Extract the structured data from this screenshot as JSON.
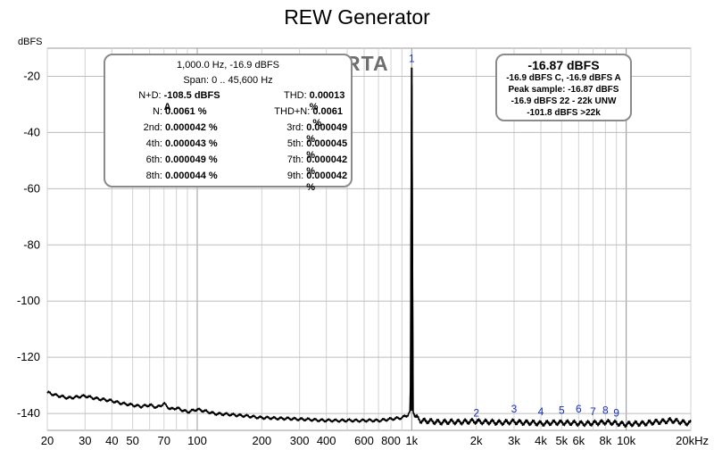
{
  "chart_data": {
    "type": "line",
    "title": "REW Generator",
    "ylabel": "dBFS",
    "xlabel": "",
    "xscale": "log",
    "xlim": [
      20,
      20000
    ],
    "ylim": [
      -146,
      -10
    ],
    "yticks": [
      -20,
      -40,
      -60,
      -80,
      -100,
      -120,
      -140
    ],
    "ytick_labels": [
      "-20",
      "-40",
      "-60",
      "-80",
      "-100",
      "-120",
      "-140"
    ],
    "xticks": [
      20,
      30,
      40,
      50,
      70,
      100,
      200,
      300,
      400,
      600,
      800,
      1000,
      2000,
      3000,
      4000,
      5000,
      6000,
      8000,
      10000,
      20000
    ],
    "xtick_labels": [
      "20",
      "30",
      "40",
      "50",
      "70",
      "100",
      "200",
      "300",
      "400",
      "600",
      "800",
      "1k",
      "2k",
      "3k",
      "4k",
      "5k",
      "6k",
      "8k",
      "10k",
      "20kHz"
    ],
    "grid": true,
    "series": [
      {
        "x": [
          20,
          22,
          25,
          28,
          30,
          33,
          36,
          40,
          45,
          50,
          55,
          60,
          65,
          70,
          75,
          80,
          90,
          100,
          120,
          150,
          200,
          300,
          400,
          500,
          600,
          700,
          800,
          900,
          960,
          985,
          1000,
          1015,
          1040,
          1100,
          1300,
          1600,
          2000,
          2500,
          3000,
          4000,
          5000,
          6000,
          7000,
          8000,
          9000,
          10000,
          12000,
          14000,
          16000,
          18000,
          20000
        ],
        "y": [
          -132.5,
          -133.5,
          -134.5,
          -134.0,
          -133.8,
          -134.5,
          -135.0,
          -135.5,
          -136.5,
          -137.0,
          -137.5,
          -137.0,
          -137.8,
          -136.5,
          -138.5,
          -138.0,
          -139.5,
          -138.5,
          -140.0,
          -140.5,
          -141.5,
          -142.0,
          -142.5,
          -142.5,
          -142.5,
          -142.5,
          -142.0,
          -141.5,
          -140.5,
          -139.0,
          -16.9,
          -139.0,
          -141.0,
          -142.5,
          -143.0,
          -143.0,
          -142.8,
          -143.2,
          -143.0,
          -143.5,
          -143.2,
          -143.5,
          -143.5,
          -143.0,
          -143.5,
          -143.8,
          -143.5,
          -143.0,
          -142.5,
          -143.0,
          -143.5
        ]
      }
    ],
    "harmonic_markers": [
      {
        "label": "1",
        "freq": 1000,
        "level": -16.9
      },
      {
        "label": "2",
        "freq": 2000,
        "level": -143.0
      },
      {
        "label": "3",
        "freq": 3000,
        "level": -141.5
      },
      {
        "label": "4",
        "freq": 4000,
        "level": -142.5
      },
      {
        "label": "5",
        "freq": 5000,
        "level": -142.0
      },
      {
        "label": "6",
        "freq": 6000,
        "level": -141.5
      },
      {
        "label": "7",
        "freq": 7000,
        "level": -142.5
      },
      {
        "label": "8",
        "freq": 8000,
        "level": -142.0
      },
      {
        "label": "9",
        "freq": 9000,
        "level": -143.0
      }
    ],
    "line_color": "#000000",
    "marker_color": "#1a2fb5"
  },
  "overlay": {
    "rta_label": "RTA",
    "measurements": {
      "header_freq": "1,000.0 Hz, -16.9 dBFS",
      "header_span": "Span: 0 .. 45,600 Hz",
      "rows": [
        [
          {
            "label": "N+D:",
            "value": "-108.5 dBFS A"
          },
          {
            "label": "THD:",
            "value": "0.00013 %"
          }
        ],
        [
          {
            "label": "N:",
            "value": "0.0061 %"
          },
          {
            "label": "THD+N:",
            "value": "0.0061 %"
          }
        ],
        [
          {
            "label": "2nd:",
            "value": "0.000042 %"
          },
          {
            "label": "3rd:",
            "value": "0.000049 %"
          }
        ],
        [
          {
            "label": "4th:",
            "value": "0.000043 %"
          },
          {
            "label": "5th:",
            "value": "0.000045 %"
          }
        ],
        [
          {
            "label": "6th:",
            "value": "0.000049 %"
          },
          {
            "label": "7th:",
            "value": "0.000042 %"
          }
        ],
        [
          {
            "label": "8th:",
            "value": "0.000044 %"
          },
          {
            "label": "9th:",
            "value": "0.000042 %"
          }
        ]
      ]
    },
    "level": {
      "big": "-16.87 dBFS",
      "lines": [
        "-16.9 dBFS C, -16.9 dBFS A",
        "Peak sample: -16.87 dBFS",
        "-16.9 dBFS 22 - 22k UNW",
        "-101.8 dBFS >22k"
      ]
    }
  }
}
